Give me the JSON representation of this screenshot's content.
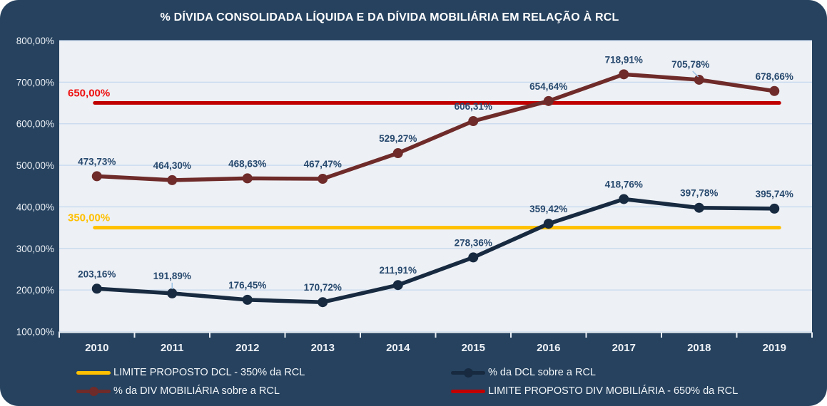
{
  "colors": {
    "background": "#26425f",
    "plot_bg": "#edf0f5",
    "grid": "#c6d9ee",
    "axis": "#e8edf3",
    "axis_text": "#eef2f7",
    "data_label": "#27496e",
    "leader": "#9dc3e6",
    "title_text": "#ffffff",
    "legend_text": "#f2f5f8"
  },
  "chart_data": {
    "type": "line",
    "title": "% DÍVIDA CONSOLIDADA LÍQUIDA E DA DÍVIDA MOBILIÁRIA EM RELAÇÃO À RCL",
    "categories": [
      "2010",
      "2011",
      "2012",
      "2013",
      "2014",
      "2015",
      "2016",
      "2017",
      "2018",
      "2019"
    ],
    "y_axis": {
      "min": 100,
      "max": 800,
      "step": 100,
      "tick_labels": [
        "800,00%",
        "700,00%",
        "600,00%",
        "500,00%",
        "400,00%",
        "300,00%",
        "200,00%",
        "100,00%"
      ]
    },
    "grid": true,
    "series": [
      {
        "id": "div-mobiliaria",
        "name": "% da DIV MOBILIÁRIA sobre a RCL",
        "color": "#6e2b29",
        "marker": true,
        "values": [
          473.73,
          464.3,
          468.63,
          467.47,
          529.27,
          606.31,
          654.64,
          718.91,
          705.78,
          678.66
        ],
        "labels": [
          "473,73%",
          "464,30%",
          "468,63%",
          "467,47%",
          "529,27%",
          "606,31%",
          "654,64%",
          "718,91%",
          "705,78%",
          "678,66%"
        ]
      },
      {
        "id": "dcl",
        "name": "% da DCL sobre a RCL",
        "color": "#172a40",
        "marker": true,
        "values": [
          203.16,
          191.89,
          176.45,
          170.72,
          211.91,
          278.36,
          359.42,
          418.76,
          397.78,
          395.74
        ],
        "labels": [
          "203,16%",
          "191,89%",
          "176,45%",
          "170,72%",
          "211,91%",
          "278,36%",
          "359,42%",
          "418,76%",
          "397,78%",
          "395,74%"
        ]
      }
    ],
    "limit_lines": [
      {
        "id": "limite-dcl",
        "name": "LIMITE PROPOSTO DCL - 350% da RCL",
        "value": 350,
        "color": "#ffc000",
        "label": "350,00%",
        "label_color": "#ffc000"
      },
      {
        "id": "limite-div-mobiliaria",
        "name": "LIMITE PROPOSTO DIV MOBILIÁRIA - 650% da RCL",
        "value": 650,
        "color": "#c00000",
        "label": "650,00%",
        "label_color": "#ee1111"
      }
    ],
    "legend": {
      "position": "bottom",
      "items": [
        {
          "label": "LIMITE PROPOSTO DCL - 350% da RCL",
          "color": "#ffc000",
          "marker": false
        },
        {
          "label": "% da DIV MOBILIÁRIA sobre a RCL",
          "color": "#6e2b29",
          "marker": true
        },
        {
          "label": "% da DCL sobre a RCL",
          "color": "#172a40",
          "marker": true
        },
        {
          "label": "LIMITE PROPOSTO DIV MOBILIÁRIA - 650% da RCL",
          "color": "#c00000",
          "marker": false
        }
      ]
    }
  }
}
